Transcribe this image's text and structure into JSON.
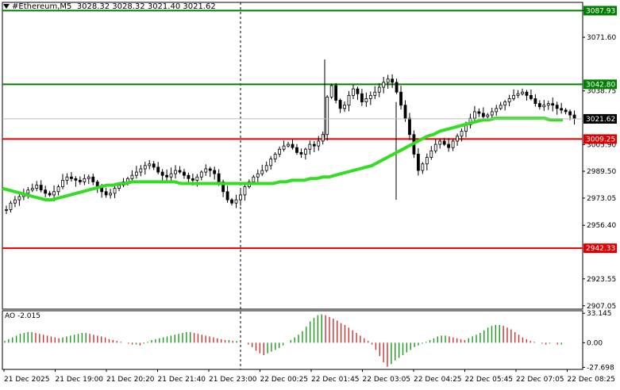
{
  "header": {
    "symbol": "#Ethereum,M5",
    "ohlc": "3028.32 3028.32 3021.40 3021.62"
  },
  "ao_header": "AO -2.015",
  "colors": {
    "price_line_green": "#008000",
    "price_line_red": "#e00000",
    "ma": "#33dd22",
    "candle": "#000000",
    "ao_up": "#1a9a1a",
    "ao_down": "#d03030",
    "grid": "#000000"
  },
  "chart_data": [
    {
      "type": "line",
      "title": "#Ethereum,M5",
      "y_ticks": [
        "3087.93",
        "3071.60",
        "3038.75",
        "3005.90",
        "2989.50",
        "2973.05",
        "2956.40",
        "2923.55",
        "2907.05"
      ],
      "ylim": [
        2905,
        3093
      ],
      "x_labels": [
        "21 Dec 2025",
        "21 Dec 19:00",
        "21 Dec 20:20",
        "21 Dec 21:40",
        "21 Dec 23:00",
        "22 Dec 00:25",
        "22 Dec 01:45",
        "22 Dec 03:05",
        "22 Dec 04:25",
        "22 Dec 05:45",
        "22 Dec 07:05",
        "22 Dec 08:25"
      ],
      "horizontal_levels": [
        {
          "value": 3087.93,
          "label": "3087.93",
          "color": "#008000"
        },
        {
          "value": 3042.8,
          "label": "3042.80",
          "color": "#008000"
        },
        {
          "value": 3009.25,
          "label": "3009.25",
          "color": "#e00000"
        },
        {
          "value": 2942.33,
          "label": "2942.33",
          "color": "#e00000"
        }
      ],
      "current_price": {
        "value": 3021.62,
        "label": "3021.62"
      },
      "price_series": [
        2966,
        2970,
        2972,
        2974,
        2976,
        2978,
        2979,
        2981,
        2978,
        2976,
        2975,
        2977,
        2980,
        2984,
        2986,
        2985,
        2984,
        2983,
        2985,
        2986,
        2983,
        2980,
        2977,
        2975,
        2976,
        2979,
        2981,
        2983,
        2985,
        2987,
        2989,
        2991,
        2993,
        2994,
        2992,
        2989,
        2987,
        2986,
        2988,
        2990,
        2989,
        2987,
        2985,
        2984,
        2986,
        2989,
        2991,
        2990,
        2988,
        2983,
        2977,
        2972,
        2970,
        2972,
        2975,
        2980,
        2983,
        2986,
        2988,
        2990,
        2993,
        2997,
        3000,
        3003,
        3005,
        3006,
        3004,
        3001,
        3000,
        3003,
        3006,
        3005,
        3008,
        3012,
        3035,
        3042,
        3033,
        3028,
        3030,
        3036,
        3040,
        3037,
        3032,
        3034,
        3036,
        3038,
        3041,
        3044,
        3046,
        3044,
        3038,
        3030,
        3022,
        3012,
        3000,
        2990,
        2994,
        2998,
        3002,
        3006,
        3008,
        3006,
        3004,
        3008,
        3011,
        3014,
        3018,
        3022,
        3026,
        3025,
        3023,
        3024,
        3026,
        3028,
        3030,
        3032,
        3034,
        3036,
        3037,
        3038,
        3036,
        3034,
        3031,
        3029,
        3030,
        3031,
        3030,
        3028,
        3027,
        3026,
        3024,
        3022
      ],
      "ma_series": [
        2979,
        2978,
        2977,
        2976,
        2975,
        2974,
        2973,
        2972,
        2972,
        2973,
        2974,
        2975,
        2976,
        2977,
        2978,
        2979,
        2980,
        2981,
        2981,
        2982,
        2982,
        2983,
        2983,
        2983,
        2983,
        2983,
        2983,
        2983,
        2983,
        2982,
        2982,
        2982,
        2982,
        2982,
        2982,
        2982,
        2982,
        2982,
        2982,
        2982,
        2982,
        2982,
        2982,
        2982,
        2982,
        2983,
        2983,
        2984,
        2984,
        2984,
        2985,
        2985,
        2986,
        2986,
        2987,
        2988,
        2989,
        2990,
        2991,
        2992,
        2993,
        2995,
        2997,
        2999,
        3001,
        3003,
        3005,
        3007,
        3009,
        3011,
        3012,
        3014,
        3015,
        3016,
        3017,
        3018,
        3019,
        3020,
        3021,
        3021,
        3022,
        3022,
        3022,
        3022,
        3022,
        3022,
        3022,
        3022,
        3022,
        3021,
        3021,
        3021
      ]
    },
    {
      "type": "bar",
      "title": "AO -2.015",
      "y_ticks": [
        "33.145",
        "0.00",
        "-27.698"
      ],
      "ylim": [
        -30,
        36
      ],
      "values": [
        2,
        4,
        6,
        8,
        10,
        11,
        12,
        12,
        11,
        10,
        9,
        8,
        7,
        6,
        5,
        6,
        7,
        8,
        9,
        10,
        11,
        11,
        10,
        9,
        8,
        7,
        6,
        4,
        3,
        2,
        1,
        0,
        -1,
        -2,
        -2,
        -3,
        -1,
        1,
        3,
        4,
        5,
        6,
        7,
        8,
        9,
        10,
        11,
        12,
        12,
        11,
        10,
        9,
        8,
        7,
        6,
        5,
        4,
        3,
        3,
        2,
        2,
        1,
        0,
        -2,
        -5,
        -9,
        -12,
        -14,
        -12,
        -10,
        -8,
        -6,
        -3,
        0,
        3,
        6,
        9,
        13,
        18,
        24,
        28,
        31,
        32,
        31,
        29,
        27,
        25,
        22,
        20,
        17,
        14,
        11,
        8,
        5,
        2,
        -2,
        -8,
        -15,
        -22,
        -27,
        -24,
        -20,
        -17,
        -14,
        -11,
        -8,
        -5,
        -3,
        -1,
        1,
        3,
        5,
        7,
        8,
        8,
        7,
        6,
        5,
        4,
        3,
        5,
        7,
        9,
        11,
        14,
        17,
        19,
        20,
        20,
        19,
        17,
        15,
        12,
        9,
        6,
        4,
        2,
        1,
        0,
        -1,
        -2,
        -1,
        0,
        -2,
        -2
      ]
    }
  ]
}
